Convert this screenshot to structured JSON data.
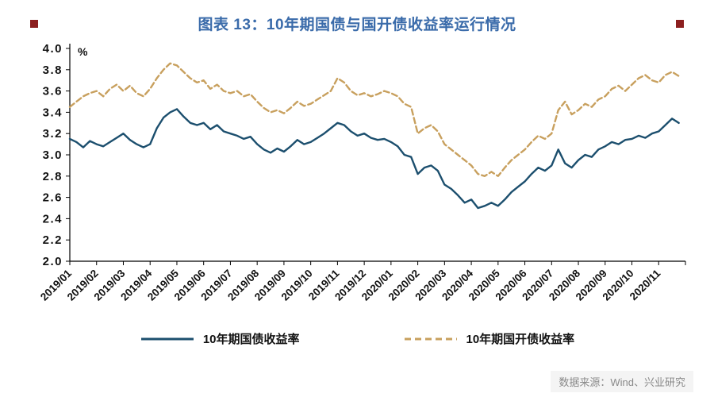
{
  "header": {
    "title": "图表 13：10年期国债与国开债收益率运行情况",
    "title_color": "#3A6BAA",
    "accent_square_color": "#8C1F1F"
  },
  "chart_data": {
    "type": "line",
    "title": "图表 13：10年期国债与国开债收益率运行情况",
    "unit_label": "%",
    "ylim": [
      2.0,
      4.0
    ],
    "ytick_step": 0.2,
    "yticks": [
      "4.0",
      "3.8",
      "3.6",
      "3.4",
      "3.2",
      "3.0",
      "2.8",
      "2.6",
      "2.4",
      "2.2",
      "2.0"
    ],
    "grid": false,
    "legend_position": "bottom",
    "categories": [
      "2019/01",
      "2019/02",
      "2019/03",
      "2019/04",
      "2019/05",
      "2019/06",
      "2019/07",
      "2019/08",
      "2019/09",
      "2019/10",
      "2019/11",
      "2019/12",
      "2020/01",
      "2020/02",
      "2020/03",
      "2020/04",
      "2020/05",
      "2020/06",
      "2020/07",
      "2020/08",
      "2020/09",
      "2020/10",
      "2020/11"
    ],
    "points_per_month": 4,
    "series": [
      {
        "name": "10年期国债收益率",
        "color": "#1C4F6E",
        "dash": "solid",
        "values": [
          3.15,
          3.12,
          3.07,
          3.13,
          3.1,
          3.08,
          3.12,
          3.16,
          3.2,
          3.14,
          3.1,
          3.07,
          3.1,
          3.25,
          3.35,
          3.4,
          3.43,
          3.36,
          3.3,
          3.28,
          3.3,
          3.24,
          3.28,
          3.22,
          3.2,
          3.18,
          3.15,
          3.17,
          3.1,
          3.05,
          3.02,
          3.06,
          3.03,
          3.08,
          3.14,
          3.1,
          3.12,
          3.16,
          3.2,
          3.25,
          3.3,
          3.28,
          3.22,
          3.18,
          3.2,
          3.16,
          3.14,
          3.15,
          3.12,
          3.08,
          3.0,
          2.98,
          2.82,
          2.88,
          2.9,
          2.85,
          2.72,
          2.68,
          2.62,
          2.55,
          2.58,
          2.5,
          2.52,
          2.55,
          2.52,
          2.58,
          2.65,
          2.7,
          2.75,
          2.82,
          2.88,
          2.85,
          2.9,
          3.05,
          2.92,
          2.88,
          2.95,
          3.0,
          2.98,
          3.05,
          3.08,
          3.12,
          3.1,
          3.14,
          3.15,
          3.18,
          3.16,
          3.2,
          3.22,
          3.28,
          3.34,
          3.3
        ]
      },
      {
        "name": "10年期国开债收益率",
        "color": "#C8A05E",
        "dash": "dashed",
        "values": [
          3.45,
          3.5,
          3.55,
          3.58,
          3.6,
          3.55,
          3.62,
          3.66,
          3.6,
          3.65,
          3.58,
          3.55,
          3.62,
          3.72,
          3.8,
          3.86,
          3.84,
          3.78,
          3.72,
          3.68,
          3.7,
          3.62,
          3.66,
          3.6,
          3.58,
          3.6,
          3.55,
          3.57,
          3.5,
          3.44,
          3.4,
          3.42,
          3.39,
          3.44,
          3.5,
          3.46,
          3.48,
          3.52,
          3.56,
          3.6,
          3.72,
          3.68,
          3.6,
          3.56,
          3.58,
          3.55,
          3.57,
          3.6,
          3.58,
          3.55,
          3.48,
          3.45,
          3.2,
          3.25,
          3.28,
          3.22,
          3.1,
          3.05,
          3.0,
          2.95,
          2.9,
          2.82,
          2.8,
          2.84,
          2.8,
          2.88,
          2.95,
          3.0,
          3.05,
          3.12,
          3.18,
          3.15,
          3.2,
          3.42,
          3.5,
          3.38,
          3.42,
          3.48,
          3.45,
          3.52,
          3.55,
          3.62,
          3.65,
          3.6,
          3.66,
          3.72,
          3.75,
          3.7,
          3.68,
          3.75,
          3.78,
          3.74
        ]
      }
    ]
  },
  "footer": {
    "source": "数据来源：Wind、兴业研究"
  }
}
